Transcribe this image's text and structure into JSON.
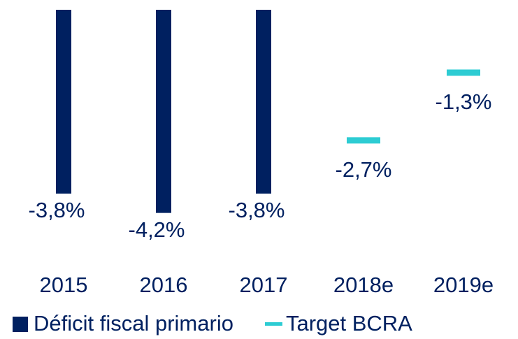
{
  "chart_data": {
    "type": "bar",
    "categories": [
      "2015",
      "2016",
      "2017",
      "2018e",
      "2019e"
    ],
    "series": [
      {
        "name": "Déficit fiscal primario",
        "color": "#002060",
        "values": [
          -3.8,
          -4.2,
          -3.8,
          null,
          null
        ],
        "value_labels": [
          "-3,8%",
          "-4,2%",
          "-3,8%",
          null,
          null
        ]
      },
      {
        "name": "Target BCRA",
        "color": "#2dccd3",
        "marker": "dash",
        "values": [
          null,
          null,
          null,
          -2.7,
          -1.3
        ],
        "value_labels": [
          null,
          null,
          null,
          "-2,7%",
          "-1,3%"
        ]
      }
    ]
  }
}
